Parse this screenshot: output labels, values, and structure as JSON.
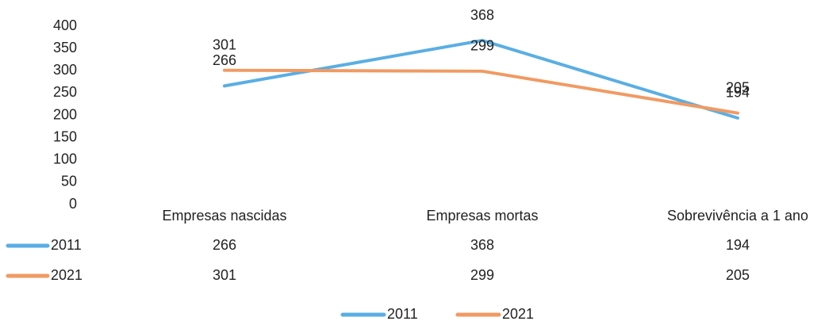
{
  "chart_data": {
    "type": "line",
    "categories": [
      "Empresas nascidas",
      "Empresas mortas",
      "Sobrevivência a 1 ano"
    ],
    "series": [
      {
        "name": "2011",
        "color": "#5aaee3",
        "values": [
          266,
          368,
          194
        ]
      },
      {
        "name": "2021",
        "color": "#f09a63",
        "values": [
          301,
          299,
          205
        ]
      }
    ],
    "ylim": [
      0,
      400
    ],
    "yticks": [
      0,
      50,
      100,
      150,
      200,
      250,
      300,
      350,
      400
    ],
    "grid": false,
    "legend": "bottom"
  }
}
